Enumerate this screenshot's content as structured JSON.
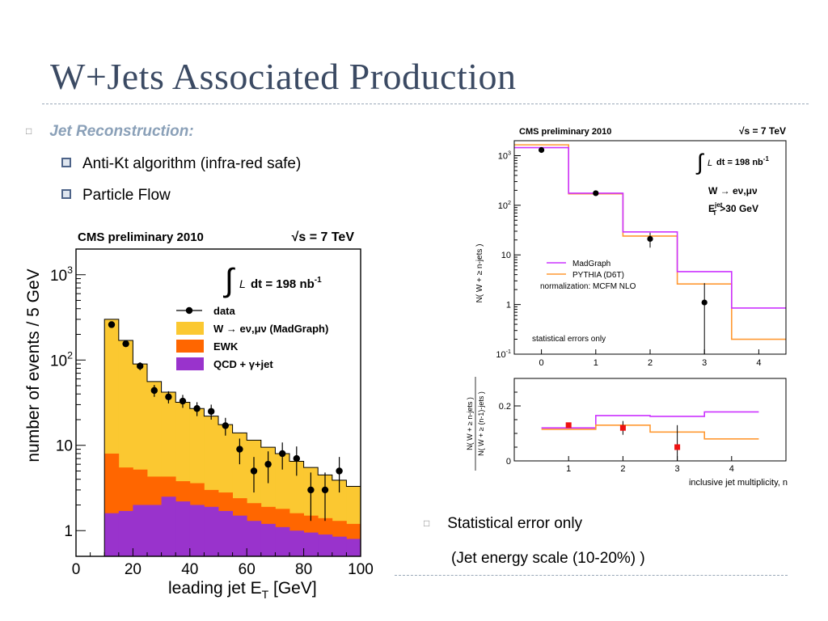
{
  "slide": {
    "title": "W+Jets Associated Production",
    "bullet_heading": "Jet  Reconstruction:",
    "sub_bullets": [
      "Anti-Kt algorithm (infra-red safe)",
      "Particle Flow"
    ],
    "note_line1": "Statistical error only",
    "note_line2": "(Jet energy scale (10-20%) )",
    "colors": {
      "title": "#3b4a63",
      "heading": "#8aa0b8",
      "bullet_box": "#4d6388"
    },
    "icons": {
      "level1_bullet": "hollow-square-bullet",
      "level2_bullet": "filled-square-bullet"
    }
  },
  "chart_data": [
    {
      "type": "bar",
      "header_left": "CMS preliminary 2010",
      "header_right": "√s = 7 TeV",
      "lumi_text": "dt = 198 nb",
      "lumi_sup": "-1",
      "xlabel": "leading jet E",
      "xlabel_sub": "T",
      "xlabel_unit": " [GeV]",
      "ylabel": "number of events / 5 GeV",
      "xlim": [
        0,
        100
      ],
      "ylim": [
        0.5,
        2000
      ],
      "yscale": "log",
      "xticks": [
        "0",
        "20",
        "40",
        "60",
        "80",
        "100"
      ],
      "yticks": [
        {
          "value": 1,
          "label": "1"
        },
        {
          "value": 10,
          "label": "10"
        },
        {
          "value": 100,
          "label": "10",
          "sup": "2"
        },
        {
          "value": 1000,
          "label": "10",
          "sup": "3"
        }
      ],
      "legend": [
        {
          "name": "data",
          "kind": "marker"
        },
        {
          "name": "W → eν,μν (MadGraph)",
          "kind": "box",
          "color": "#fbc831"
        },
        {
          "name": "EWK",
          "kind": "box",
          "color": "#ff6600"
        },
        {
          "name": "QCD + γ+jet",
          "kind": "box",
          "color": "#9933cc"
        }
      ],
      "bin_edges": [
        10,
        15,
        20,
        25,
        30,
        35,
        40,
        45,
        50,
        55,
        60,
        65,
        70,
        75,
        80,
        85,
        90,
        95,
        100
      ],
      "stack": [
        {
          "name": "QCD + γ+jet",
          "color": "#9933cc",
          "top": [
            1.6,
            1.7,
            2.0,
            2.0,
            2.5,
            2.2,
            2.0,
            1.9,
            1.7,
            1.5,
            1.3,
            1.2,
            1.1,
            1.0,
            0.95,
            0.9,
            0.85,
            0.8
          ]
        },
        {
          "name": "EWK",
          "color": "#ff6600",
          "top": [
            8,
            5.5,
            5.2,
            4.3,
            4.3,
            3.8,
            3.6,
            3.0,
            2.8,
            2.4,
            2.1,
            1.9,
            1.8,
            1.6,
            1.5,
            1.4,
            1.3,
            1.2
          ]
        },
        {
          "name": "W → eν,μν (MadGraph)",
          "color": "#fbc831",
          "top": [
            300,
            170,
            90,
            56,
            42,
            32,
            27,
            22,
            17.5,
            14,
            11.5,
            9.5,
            8,
            6.5,
            5.5,
            4.5,
            3.9,
            3.3
          ]
        }
      ],
      "data_points": [
        {
          "x": 12.5,
          "y": 260,
          "lo": 245,
          "hi": 275
        },
        {
          "x": 17.5,
          "y": 155,
          "lo": 143,
          "hi": 167
        },
        {
          "x": 22.5,
          "y": 85,
          "lo": 76,
          "hi": 94
        },
        {
          "x": 27.5,
          "y": 44,
          "lo": 37,
          "hi": 51
        },
        {
          "x": 32.5,
          "y": 37,
          "lo": 31,
          "hi": 43
        },
        {
          "x": 37.5,
          "y": 33,
          "lo": 27.5,
          "hi": 39
        },
        {
          "x": 42.5,
          "y": 27,
          "lo": 22,
          "hi": 32
        },
        {
          "x": 47.5,
          "y": 25,
          "lo": 20,
          "hi": 30
        },
        {
          "x": 52.5,
          "y": 17,
          "lo": 13,
          "hi": 21
        },
        {
          "x": 57.5,
          "y": 9,
          "lo": 6,
          "hi": 12
        },
        {
          "x": 62.5,
          "y": 5,
          "lo": 2.8,
          "hi": 7.3
        },
        {
          "x": 67.5,
          "y": 6,
          "lo": 3.6,
          "hi": 8.5
        },
        {
          "x": 72.5,
          "y": 8,
          "lo": 5.2,
          "hi": 10.8
        },
        {
          "x": 77.5,
          "y": 7,
          "lo": 4.4,
          "hi": 9.7
        },
        {
          "x": 82.5,
          "y": 3,
          "lo": 1.3,
          "hi": 4.8
        },
        {
          "x": 87.5,
          "y": 3,
          "lo": 1.3,
          "hi": 4.8
        },
        {
          "x": 92.5,
          "y": 5,
          "lo": 2.8,
          "hi": 7.3
        }
      ]
    },
    {
      "type": "line",
      "header_left": "CMS preliminary 2010",
      "header_right": "√s = 7 TeV",
      "lumi_text": "dt = 198 nb",
      "lumi_sup": "-1",
      "process_text": "W → eν,μν",
      "cut_text": "E",
      "cut_sup": "jet",
      "cut_sub": "T",
      "cut_tail": ">30 GeV",
      "ylabel": "N( W + ≥ n-jets )",
      "xlim": [
        -0.5,
        4.5
      ],
      "ylim": [
        0.1,
        2000
      ],
      "yscale": "log",
      "xticks": [
        "0",
        "1",
        "2",
        "3",
        "4"
      ],
      "yticks": [
        {
          "value": 0.1,
          "label": "10",
          "sup": "-1"
        },
        {
          "value": 1,
          "label": "1"
        },
        {
          "value": 10,
          "label": "10"
        },
        {
          "value": 100,
          "label": "10",
          "sup": "2"
        },
        {
          "value": 1000,
          "label": "10",
          "sup": "3"
        }
      ],
      "legend": [
        {
          "name": "MadGraph",
          "color": "#cc33ff"
        },
        {
          "name": "PYTHIA (D6T)",
          "color": "#ff9933"
        }
      ],
      "legend_note": "normalization: MCFM NLO",
      "corner_note": "statistical errors only",
      "bin_edges": [
        -0.5,
        0.5,
        1.5,
        2.5,
        3.5,
        4.5
      ],
      "series": [
        {
          "name": "MadGraph",
          "color": "#cc33ff",
          "values": [
            1450,
            175,
            29,
            4.6,
            0.85
          ]
        },
        {
          "name": "PYTHIA (D6T)",
          "color": "#ff9933",
          "values": [
            1650,
            170,
            24,
            2.6,
            0.2
          ]
        }
      ],
      "data_points": [
        {
          "x": 0,
          "y": 1300,
          "lo": 1250,
          "hi": 1350
        },
        {
          "x": 1,
          "y": 175,
          "lo": 165,
          "hi": 185
        },
        {
          "x": 2,
          "y": 21,
          "lo": 14,
          "hi": 28
        },
        {
          "x": 3,
          "y": 1.1,
          "lo": 0.1,
          "hi": 2.7
        }
      ]
    },
    {
      "type": "line",
      "ylabel": "N( W + ≥ n-jets ) / N( W + ≥ (n-1)-jets )",
      "ylabel_num": "N( W + ≥ n-jets )",
      "ylabel_den": "N( W + ≥ (n-1)-jets )",
      "xlabel": "inclusive jet multiplicity, n",
      "xlim": [
        0,
        5
      ],
      "ylim": [
        0,
        0.3
      ],
      "yscale": "linear",
      "xticks": [
        "1",
        "2",
        "3",
        "4"
      ],
      "yticks": [
        {
          "value": 0,
          "label": "0"
        },
        {
          "value": 0.2,
          "label": "0.2"
        }
      ],
      "bin_edges": [
        0.5,
        1.5,
        2.5,
        3.5,
        4.5
      ],
      "series": [
        {
          "name": "MadGraph",
          "color": "#cc33ff",
          "values": [
            0.12,
            0.165,
            0.162,
            0.178
          ]
        },
        {
          "name": "PYTHIA (D6T)",
          "color": "#ff9933",
          "values": [
            0.115,
            0.13,
            0.105,
            0.08
          ]
        }
      ],
      "data_points": [
        {
          "x": 1,
          "y": 0.13,
          "lo": 0.122,
          "hi": 0.138
        },
        {
          "x": 2,
          "y": 0.12,
          "lo": 0.095,
          "hi": 0.145
        },
        {
          "x": 3,
          "y": 0.05,
          "lo": 0.0,
          "hi": 0.13
        }
      ]
    }
  ]
}
